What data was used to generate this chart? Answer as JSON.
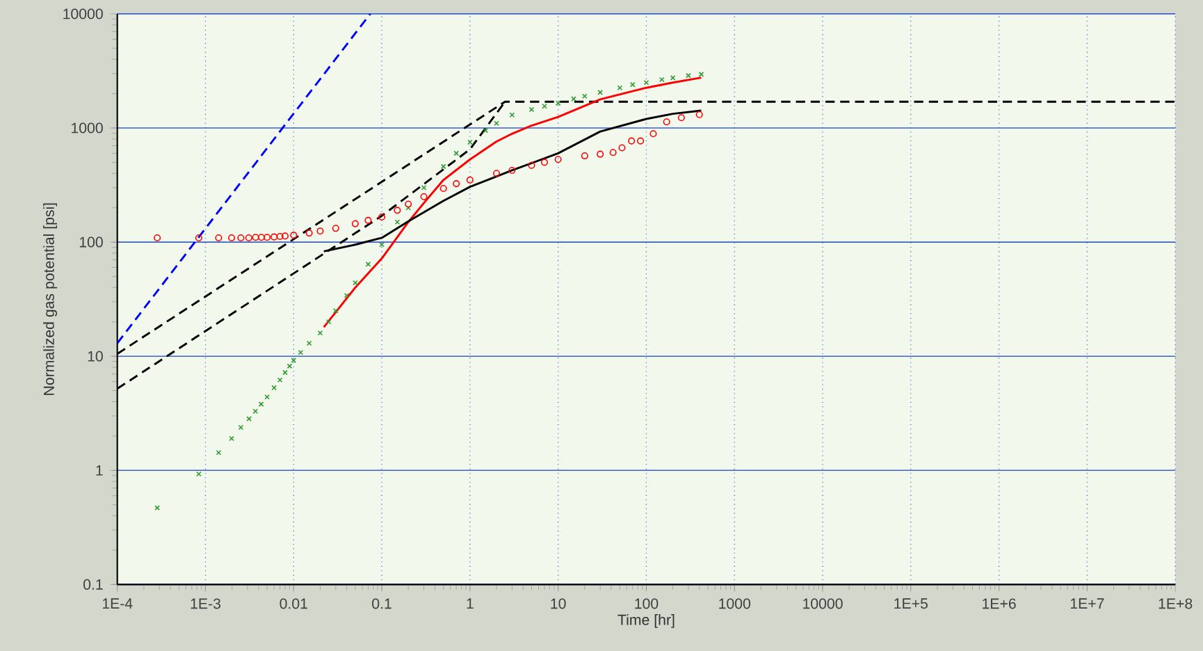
{
  "chart_data": {
    "type": "scatter",
    "xlabel": "Time [hr]",
    "ylabel": "Normalized gas potential [psi]",
    "log": "xy",
    "grid": true,
    "xlim": [
      0.0001,
      100000000
    ],
    "ylim": [
      0.1,
      10000
    ],
    "xticks": [
      {
        "value": 0.0001,
        "label": "1E-4"
      },
      {
        "value": 0.001,
        "label": "1E-3"
      },
      0.01,
      0.1,
      1,
      10,
      100,
      1000,
      10000,
      {
        "value": 100000,
        "label": "1E+5"
      },
      {
        "value": 1000000,
        "label": "1E+6"
      },
      {
        "value": 10000000,
        "label": "1E+7"
      },
      {
        "value": 100000000,
        "label": "1E+8"
      }
    ],
    "yticks": [
      0.1,
      1,
      10,
      100,
      1000,
      10000
    ],
    "series": [
      {
        "type": "line",
        "color": "#0000ff",
        "marker": "none",
        "line_style": "dashed",
        "x": [
          0.0001,
          0.074
        ],
        "values": [
          13,
          10000
        ]
      },
      {
        "type": "line",
        "color": "#000000",
        "marker": "none",
        "line_style": "dashed",
        "x": [
          0.0001,
          2.5,
          100000000
        ],
        "values": [
          10.5,
          1700,
          1700
        ]
      },
      {
        "type": "line",
        "color": "#000000",
        "marker": "none",
        "line_style": "dashed",
        "x": [
          0.0001,
          0.1,
          1,
          2.5
        ],
        "values": [
          5.2,
          170,
          650,
          1700
        ]
      },
      {
        "color": "#2e9a2e",
        "marker": "cross",
        "x": [
          0.000284,
          0.00084,
          0.00141,
          0.00198,
          0.00252,
          0.00312,
          0.00368,
          0.00428,
          0.005,
          0.006,
          0.007,
          0.008,
          0.009,
          0.01,
          0.012,
          0.015,
          0.02,
          0.025,
          0.03,
          0.04,
          0.05,
          0.07,
          0.1,
          0.15,
          0.2,
          0.3,
          0.5,
          0.7,
          1,
          1.5,
          2,
          3,
          5,
          7,
          10,
          15,
          20,
          30,
          50,
          70,
          100,
          150,
          200,
          300,
          420
        ],
        "values": [
          0.47,
          0.93,
          1.43,
          1.9,
          2.38,
          2.83,
          3.3,
          3.8,
          4.4,
          5.3,
          6.2,
          7.2,
          8.2,
          9.2,
          10.8,
          13,
          16,
          20,
          25,
          34,
          44,
          64,
          95,
          150,
          200,
          300,
          460,
          600,
          750,
          950,
          1100,
          1300,
          1450,
          1550,
          1650,
          1800,
          1900,
          2050,
          2250,
          2400,
          2500,
          2650,
          2750,
          2880,
          2950
        ]
      },
      {
        "color": "#ff0000",
        "marker": "circle",
        "x": [
          0.000284,
          0.00084,
          0.00141,
          0.00198,
          0.00252,
          0.0031,
          0.0037,
          0.0043,
          0.005,
          0.006,
          0.007,
          0.008,
          0.01,
          0.015,
          0.02,
          0.03,
          0.05,
          0.07,
          0.1,
          0.15,
          0.2,
          0.3,
          0.5,
          0.7,
          1,
          2,
          3,
          5,
          7,
          10,
          20,
          30,
          42,
          53,
          68,
          86,
          120,
          170,
          250,
          400
        ],
        "values": [
          109,
          109,
          109,
          109,
          109,
          109,
          110,
          110,
          110,
          111,
          112,
          113,
          115,
          120,
          125,
          132,
          145,
          155,
          166,
          190,
          215,
          250,
          295,
          325,
          350,
          400,
          425,
          470,
          500,
          530,
          570,
          590,
          610,
          670,
          770,
          770,
          890,
          1130,
          1230,
          1310
        ]
      },
      {
        "type": "line",
        "color": "#ff0000",
        "marker": "none",
        "line_style": "solid",
        "x": [
          0.022,
          0.05,
          0.1,
          0.2,
          0.3,
          0.5,
          1,
          2,
          3,
          5,
          10,
          30,
          100,
          200,
          420
        ],
        "values": [
          18,
          40,
          72,
          150,
          220,
          350,
          530,
          760,
          890,
          1050,
          1250,
          1780,
          2250,
          2500,
          2760
        ]
      },
      {
        "type": "line",
        "color": "#000000",
        "marker": "none",
        "line_style": "solid",
        "x": [
          0.022,
          0.05,
          0.1,
          0.2,
          0.5,
          1,
          3,
          10,
          30,
          100,
          200,
          420
        ],
        "values": [
          83,
          95,
          109,
          152,
          230,
          305,
          425,
          600,
          930,
          1200,
          1330,
          1420
        ]
      }
    ]
  }
}
